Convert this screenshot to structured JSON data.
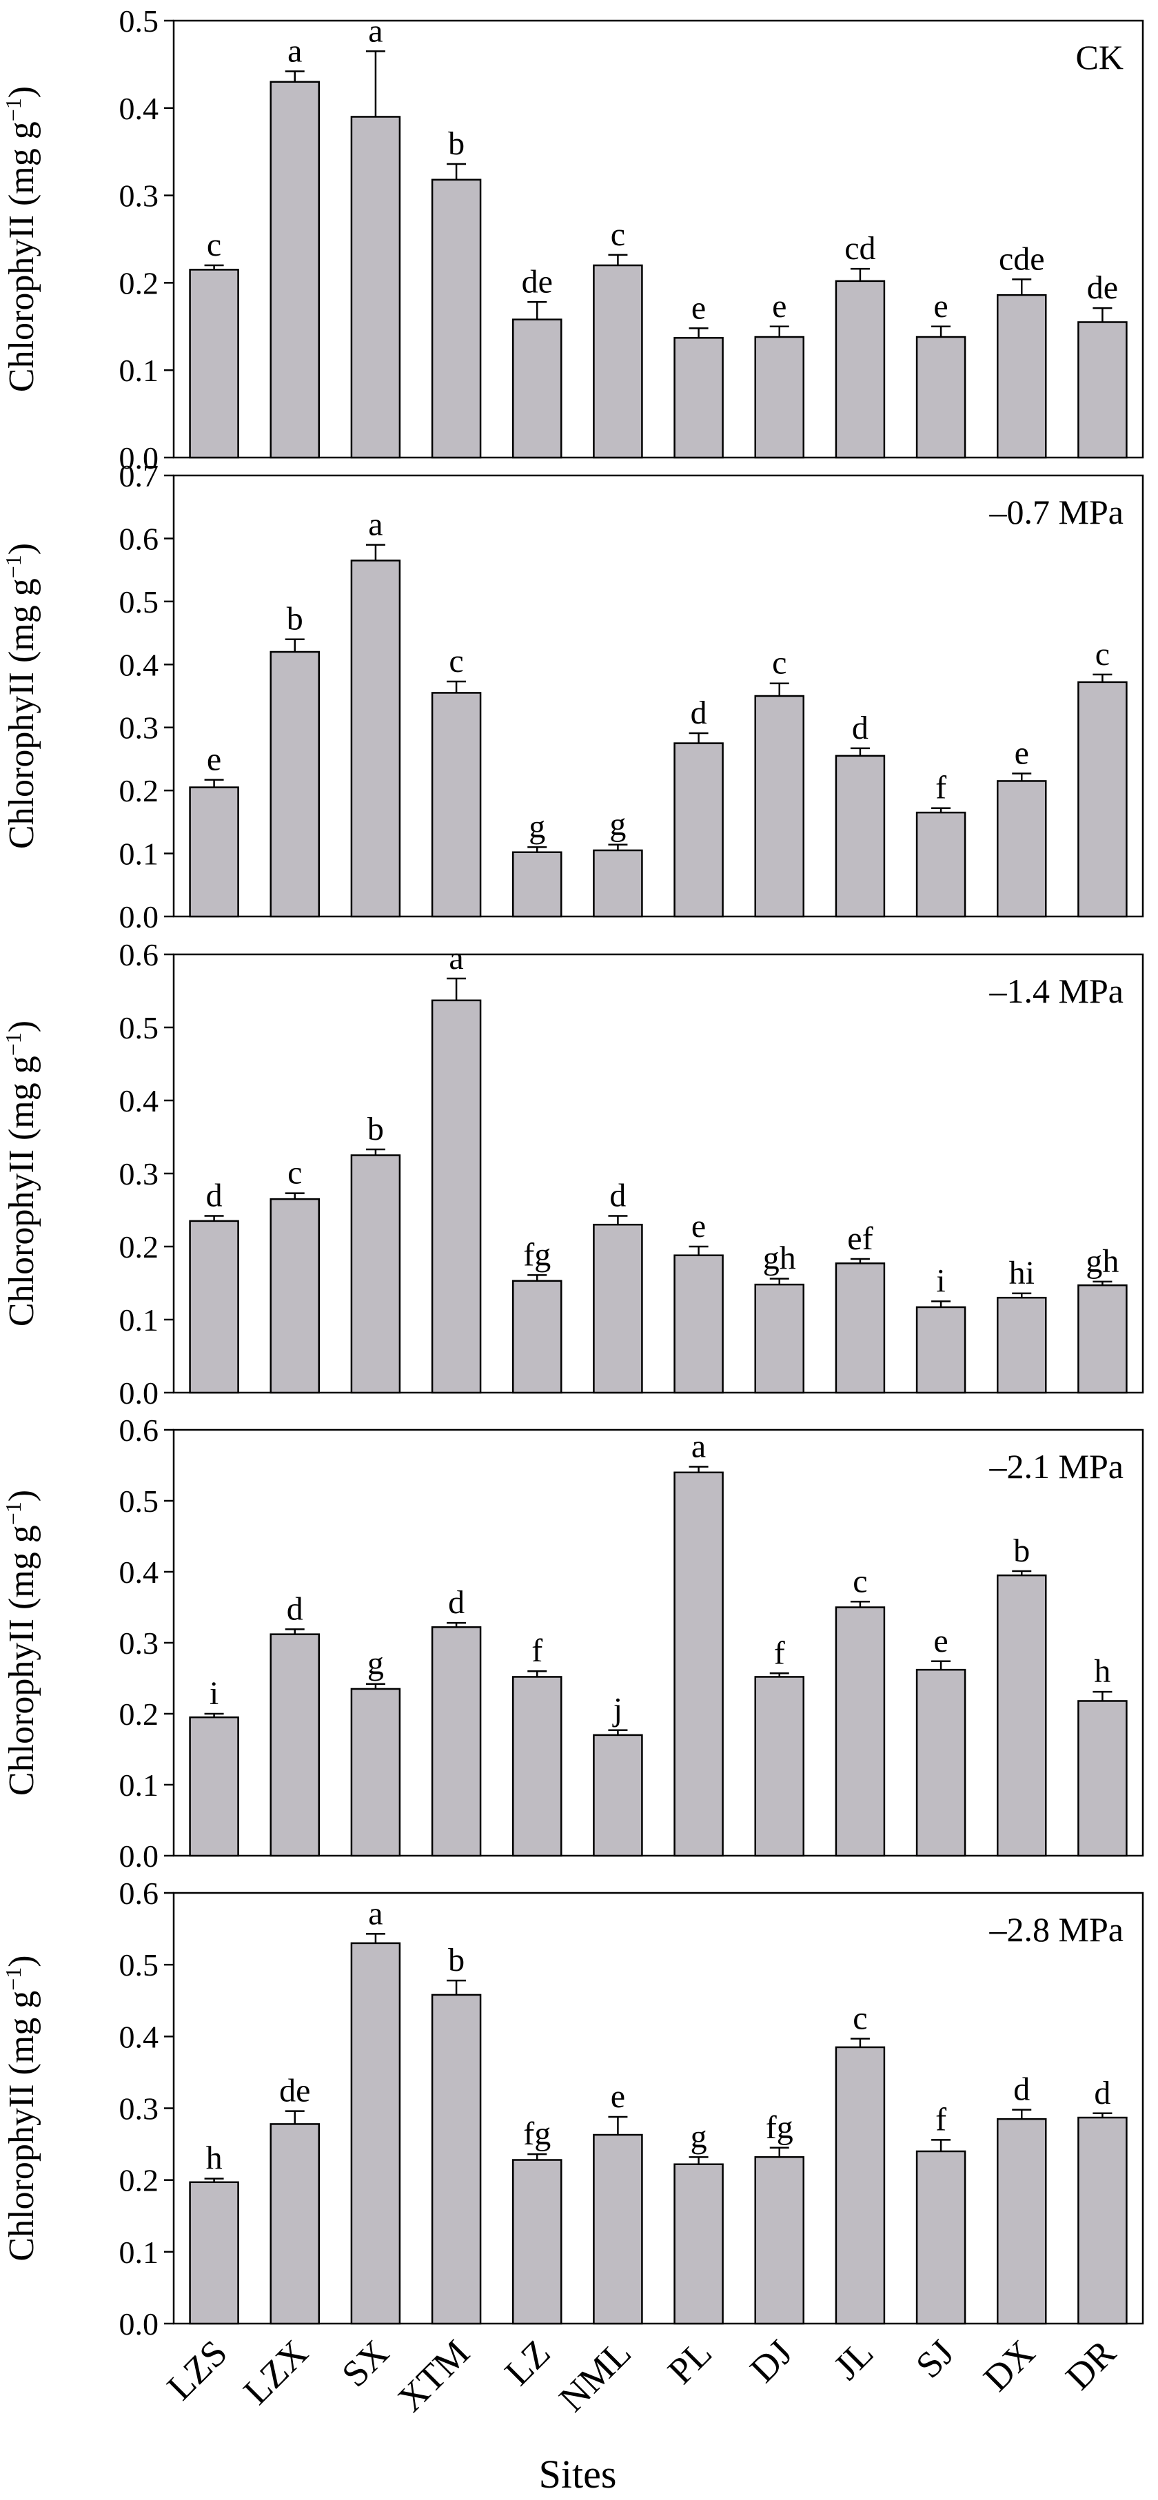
{
  "figure": {
    "xlabel": "Sites",
    "ylabel_main": "ChlorophyII (mg g",
    "ylabel_sup": "−1",
    "ylabel_close": ")"
  },
  "chart_data": [
    {
      "type": "bar",
      "panel_label": "CK",
      "categories": [
        "LZS",
        "LZX",
        "SX",
        "XTM",
        "LZ",
        "NML",
        "PL",
        "DJ",
        "JL",
        "SJ",
        "DX",
        "DR"
      ],
      "values": [
        0.215,
        0.43,
        0.39,
        0.318,
        0.158,
        0.22,
        0.137,
        0.138,
        0.202,
        0.138,
        0.186,
        0.155
      ],
      "errors": [
        0.005,
        0.012,
        0.075,
        0.018,
        0.02,
        0.012,
        0.011,
        0.012,
        0.014,
        0.012,
        0.018,
        0.016
      ],
      "letters": [
        "c",
        "a",
        "a",
        "b",
        "de",
        "c",
        "e",
        "e",
        "cd",
        "e",
        "cde",
        "de"
      ],
      "ylim": [
        0,
        0.5
      ],
      "yticks": [
        "0.0",
        "0.1",
        "0.2",
        "0.3",
        "0.4",
        "0.5"
      ],
      "bar_color": "#bfbcc2"
    },
    {
      "type": "bar",
      "panel_label": "–0.7 MPa",
      "categories": [
        "LZS",
        "LZX",
        "SX",
        "XTM",
        "LZ",
        "NML",
        "PL",
        "DJ",
        "JL",
        "SJ",
        "DX",
        "DR"
      ],
      "values": [
        0.205,
        0.42,
        0.565,
        0.355,
        0.102,
        0.105,
        0.275,
        0.35,
        0.255,
        0.165,
        0.215,
        0.372
      ],
      "errors": [
        0.012,
        0.02,
        0.025,
        0.018,
        0.008,
        0.009,
        0.016,
        0.02,
        0.012,
        0.007,
        0.012,
        0.012
      ],
      "letters": [
        "e",
        "b",
        "a",
        "c",
        "g",
        "g",
        "d",
        "c",
        "d",
        "f",
        "e",
        "c"
      ],
      "ylim": [
        0,
        0.7
      ],
      "yticks": [
        "0.0",
        "0.1",
        "0.2",
        "0.3",
        "0.4",
        "0.5",
        "0.6",
        "0.7"
      ],
      "bar_color": "#bfbcc2"
    },
    {
      "type": "bar",
      "panel_label": "–1.4 MPa",
      "categories": [
        "LZS",
        "LZX",
        "SX",
        "XTM",
        "LZ",
        "NML",
        "PL",
        "DJ",
        "JL",
        "SJ",
        "DX",
        "DR"
      ],
      "values": [
        0.235,
        0.265,
        0.325,
        0.537,
        0.153,
        0.23,
        0.188,
        0.148,
        0.177,
        0.117,
        0.13,
        0.147
      ],
      "errors": [
        0.007,
        0.008,
        0.008,
        0.03,
        0.008,
        0.012,
        0.012,
        0.008,
        0.006,
        0.008,
        0.006,
        0.005
      ],
      "letters": [
        "d",
        "c",
        "b",
        "a",
        "fg",
        "d",
        "e",
        "gh",
        "ef",
        "i",
        "hi",
        "gh"
      ],
      "ylim": [
        0,
        0.6
      ],
      "yticks": [
        "0.0",
        "0.1",
        "0.2",
        "0.3",
        "0.4",
        "0.5",
        "0.6"
      ],
      "bar_color": "#bfbcc2"
    },
    {
      "type": "bar",
      "panel_label": "–2.1 MPa",
      "categories": [
        "LZS",
        "LZX",
        "SX",
        "XTM",
        "LZ",
        "NML",
        "PL",
        "DJ",
        "JL",
        "SJ",
        "DX",
        "DR"
      ],
      "values": [
        0.195,
        0.312,
        0.235,
        0.322,
        0.252,
        0.17,
        0.54,
        0.252,
        0.35,
        0.262,
        0.395,
        0.218
      ],
      "errors": [
        0.005,
        0.007,
        0.007,
        0.006,
        0.008,
        0.007,
        0.008,
        0.005,
        0.008,
        0.012,
        0.006,
        0.013
      ],
      "letters": [
        "i",
        "d",
        "g",
        "d",
        "f",
        "j",
        "a",
        "f",
        "c",
        "e",
        "b",
        "h"
      ],
      "ylim": [
        0,
        0.6
      ],
      "yticks": [
        "0.0",
        "0.1",
        "0.2",
        "0.3",
        "0.4",
        "0.5",
        "0.6"
      ],
      "bar_color": "#bfbcc2"
    },
    {
      "type": "bar",
      "panel_label": "–2.8 MPa",
      "categories": [
        "LZS",
        "LZX",
        "SX",
        "XTM",
        "LZ",
        "NML",
        "PL",
        "DJ",
        "JL",
        "SJ",
        "DX",
        "DR"
      ],
      "values": [
        0.197,
        0.278,
        0.53,
        0.458,
        0.228,
        0.263,
        0.222,
        0.232,
        0.385,
        0.24,
        0.285,
        0.287
      ],
      "errors": [
        0.005,
        0.018,
        0.013,
        0.02,
        0.008,
        0.025,
        0.01,
        0.013,
        0.012,
        0.016,
        0.013,
        0.006
      ],
      "letters": [
        "h",
        "de",
        "a",
        "b",
        "fg",
        "e",
        "g",
        "fg",
        "c",
        "f",
        "d",
        "d"
      ],
      "ylim": [
        0,
        0.6
      ],
      "yticks": [
        "0.0",
        "0.1",
        "0.2",
        "0.3",
        "0.4",
        "0.5",
        "0.6"
      ],
      "bar_color": "#bfbcc2"
    }
  ]
}
